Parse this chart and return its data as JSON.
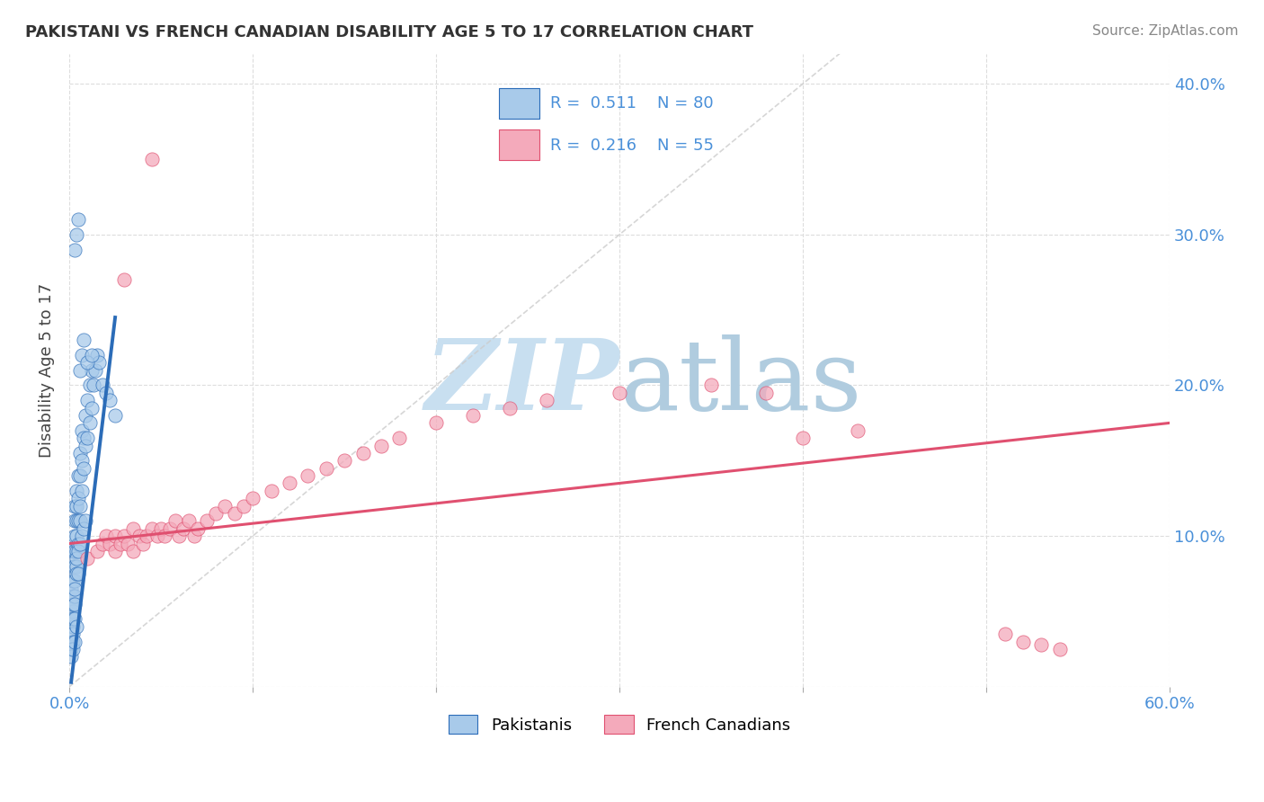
{
  "title": "PAKISTANI VS FRENCH CANADIAN DISABILITY AGE 5 TO 17 CORRELATION CHART",
  "source": "Source: ZipAtlas.com",
  "ylabel": "Disability Age 5 to 17",
  "xlim": [
    0.0,
    0.6
  ],
  "ylim": [
    0.0,
    0.42
  ],
  "xtick_vals": [
    0.0,
    0.1,
    0.2,
    0.3,
    0.4,
    0.5,
    0.6
  ],
  "xticklabels": [
    "0.0%",
    "",
    "",
    "",
    "",
    "",
    "60.0%"
  ],
  "ytick_vals": [
    0.0,
    0.1,
    0.2,
    0.3,
    0.4
  ],
  "yticklabels_right": [
    "",
    "10.0%",
    "20.0%",
    "30.0%",
    "40.0%"
  ],
  "legend1_R": "0.511",
  "legend1_N": "80",
  "legend2_R": "0.216",
  "legend2_N": "55",
  "blue_scatter_color": "#A8CAEA",
  "blue_line_color": "#2B6CB8",
  "pink_scatter_color": "#F4AABB",
  "pink_line_color": "#E05070",
  "legend_text_color": "#4A90D9",
  "background_color": "#FFFFFF",
  "grid_color": "#DDDDDD",
  "watermark_zip_color": "#C8DFF0",
  "watermark_atlas_color": "#B0CCDF",
  "diag_line_color": "#CCCCCC",
  "pakistani_x": [
    0.001,
    0.001,
    0.001,
    0.001,
    0.002,
    0.002,
    0.002,
    0.002,
    0.002,
    0.002,
    0.002,
    0.003,
    0.003,
    0.003,
    0.003,
    0.003,
    0.003,
    0.003,
    0.004,
    0.004,
    0.004,
    0.004,
    0.004,
    0.004,
    0.005,
    0.005,
    0.005,
    0.005,
    0.006,
    0.006,
    0.006,
    0.006,
    0.007,
    0.007,
    0.007,
    0.008,
    0.008,
    0.009,
    0.009,
    0.01,
    0.01,
    0.011,
    0.011,
    0.012,
    0.012,
    0.013,
    0.014,
    0.015,
    0.016,
    0.018,
    0.02,
    0.022,
    0.025,
    0.002,
    0.003,
    0.003,
    0.004,
    0.004,
    0.005,
    0.005,
    0.006,
    0.007,
    0.008,
    0.009,
    0.003,
    0.004,
    0.005,
    0.006,
    0.007,
    0.008,
    0.01,
    0.012,
    0.002,
    0.003,
    0.004,
    0.002,
    0.001,
    0.001,
    0.002,
    0.003
  ],
  "pakistani_y": [
    0.035,
    0.045,
    0.055,
    0.065,
    0.04,
    0.05,
    0.06,
    0.07,
    0.08,
    0.09,
    0.055,
    0.06,
    0.07,
    0.08,
    0.09,
    0.1,
    0.11,
    0.12,
    0.08,
    0.09,
    0.1,
    0.11,
    0.12,
    0.13,
    0.095,
    0.11,
    0.125,
    0.14,
    0.11,
    0.12,
    0.14,
    0.155,
    0.13,
    0.15,
    0.17,
    0.145,
    0.165,
    0.16,
    0.18,
    0.165,
    0.19,
    0.175,
    0.2,
    0.185,
    0.21,
    0.2,
    0.21,
    0.22,
    0.215,
    0.2,
    0.195,
    0.19,
    0.18,
    0.045,
    0.055,
    0.065,
    0.075,
    0.085,
    0.075,
    0.09,
    0.095,
    0.1,
    0.105,
    0.11,
    0.29,
    0.3,
    0.31,
    0.21,
    0.22,
    0.23,
    0.215,
    0.22,
    0.035,
    0.045,
    0.04,
    0.03,
    0.025,
    0.02,
    0.025,
    0.03
  ],
  "french_x": [
    0.01,
    0.015,
    0.018,
    0.02,
    0.022,
    0.025,
    0.025,
    0.028,
    0.03,
    0.032,
    0.035,
    0.035,
    0.038,
    0.04,
    0.042,
    0.045,
    0.048,
    0.05,
    0.052,
    0.055,
    0.058,
    0.06,
    0.062,
    0.065,
    0.068,
    0.07,
    0.075,
    0.08,
    0.085,
    0.09,
    0.095,
    0.1,
    0.11,
    0.12,
    0.13,
    0.14,
    0.15,
    0.16,
    0.17,
    0.18,
    0.2,
    0.22,
    0.24,
    0.26,
    0.3,
    0.35,
    0.38,
    0.4,
    0.43,
    0.51,
    0.52,
    0.53,
    0.54,
    0.03,
    0.045
  ],
  "french_y": [
    0.085,
    0.09,
    0.095,
    0.1,
    0.095,
    0.09,
    0.1,
    0.095,
    0.1,
    0.095,
    0.09,
    0.105,
    0.1,
    0.095,
    0.1,
    0.105,
    0.1,
    0.105,
    0.1,
    0.105,
    0.11,
    0.1,
    0.105,
    0.11,
    0.1,
    0.105,
    0.11,
    0.115,
    0.12,
    0.115,
    0.12,
    0.125,
    0.13,
    0.135,
    0.14,
    0.145,
    0.15,
    0.155,
    0.16,
    0.165,
    0.175,
    0.18,
    0.185,
    0.19,
    0.195,
    0.2,
    0.195,
    0.165,
    0.17,
    0.035,
    0.03,
    0.028,
    0.025,
    0.27,
    0.35
  ],
  "pak_trendline_x": [
    0.001,
    0.025
  ],
  "pak_trendline_y": [
    0.003,
    0.245
  ],
  "fr_trendline_x": [
    0.0,
    0.6
  ],
  "fr_trendline_y": [
    0.095,
    0.175
  ]
}
